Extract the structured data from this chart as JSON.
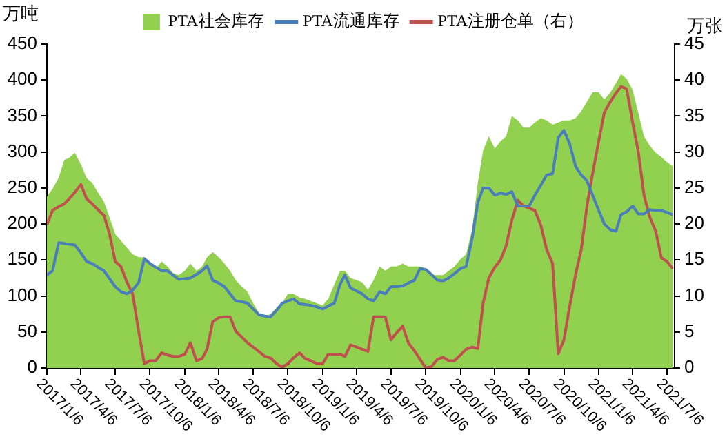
{
  "chart_data": {
    "type": "area",
    "ylabel": "万吨",
    "y2label": "万张",
    "legend": "top",
    "marker": "none",
    "x": [
      "2017-01-06",
      "2017-01-21",
      "2017-02-06",
      "2017-02-21",
      "2017-03-06",
      "2017-03-21",
      "2017-04-06",
      "2017-04-21",
      "2017-05-06",
      "2017-05-21",
      "2017-06-06",
      "2017-06-21",
      "2017-07-06",
      "2017-07-21",
      "2017-08-06",
      "2017-08-21",
      "2017-09-06",
      "2017-09-21",
      "2017-10-06",
      "2017-10-21",
      "2017-11-06",
      "2017-11-21",
      "2017-12-06",
      "2017-12-21",
      "2018-01-06",
      "2018-01-21",
      "2018-02-06",
      "2018-02-21",
      "2018-03-06",
      "2018-03-21",
      "2018-04-06",
      "2018-04-21",
      "2018-05-06",
      "2018-05-21",
      "2018-06-06",
      "2018-06-21",
      "2018-07-06",
      "2018-07-21",
      "2018-08-06",
      "2018-08-21",
      "2018-09-06",
      "2018-09-21",
      "2018-10-06",
      "2018-10-21",
      "2018-11-06",
      "2018-11-21",
      "2018-12-06",
      "2018-12-21",
      "2019-01-06",
      "2019-01-21",
      "2019-02-06",
      "2019-02-21",
      "2019-03-06",
      "2019-03-21",
      "2019-04-06",
      "2019-04-21",
      "2019-05-06",
      "2019-05-21",
      "2019-06-06",
      "2019-06-21",
      "2019-07-06",
      "2019-07-21",
      "2019-08-06",
      "2019-08-21",
      "2019-09-06",
      "2019-09-21",
      "2019-10-06",
      "2019-10-21",
      "2019-11-06",
      "2019-11-21",
      "2019-12-06",
      "2019-12-21",
      "2020-01-06",
      "2020-01-21",
      "2020-02-06",
      "2020-02-21",
      "2020-03-06",
      "2020-03-21",
      "2020-04-06",
      "2020-04-21",
      "2020-05-06",
      "2020-05-21",
      "2020-06-06",
      "2020-06-21",
      "2020-07-06",
      "2020-07-21",
      "2020-08-06",
      "2020-08-21",
      "2020-09-06",
      "2020-09-21",
      "2020-10-06",
      "2020-10-21",
      "2020-11-06",
      "2020-11-21",
      "2020-12-06",
      "2020-12-21",
      "2021-01-06",
      "2021-01-21",
      "2021-02-06",
      "2021-02-21",
      "2021-03-06",
      "2021-03-21",
      "2021-04-06",
      "2021-04-21",
      "2021-05-06",
      "2021-05-21",
      "2021-06-06",
      "2021-06-21",
      "2021-07-06",
      "2021-07-21"
    ],
    "xlim": [
      "2017-01-06",
      "2021-07-26"
    ],
    "xticks": [
      {
        "value": "2017-01-06",
        "label": "2017/1/6"
      },
      {
        "value": "2017-04-06",
        "label": "2017/4/6"
      },
      {
        "value": "2017-07-06",
        "label": "2017/7/6"
      },
      {
        "value": "2017-10-06",
        "label": "2017/10/6"
      },
      {
        "value": "2018-01-06",
        "label": "2018/1/6"
      },
      {
        "value": "2018-04-06",
        "label": "2018/4/6"
      },
      {
        "value": "2018-07-06",
        "label": "2018/7/6"
      },
      {
        "value": "2018-10-06",
        "label": "2018/10/6"
      },
      {
        "value": "2019-01-06",
        "label": "2019/1/6"
      },
      {
        "value": "2019-04-06",
        "label": "2019/4/6"
      },
      {
        "value": "2019-07-06",
        "label": "2019/7/6"
      },
      {
        "value": "2019-10-06",
        "label": "2019/10/6"
      },
      {
        "value": "2020-01-06",
        "label": "2020/1/6"
      },
      {
        "value": "2020-04-06",
        "label": "2020/4/6"
      },
      {
        "value": "2020-07-06",
        "label": "2020/7/6"
      },
      {
        "value": "2020-10-06",
        "label": "2020/10/6"
      },
      {
        "value": "2021-01-06",
        "label": "2021/1/6"
      },
      {
        "value": "2021-04-06",
        "label": "2021/4/6"
      },
      {
        "value": "2021-07-06",
        "label": "2021/7/6"
      }
    ],
    "ylim": [
      0,
      450
    ],
    "yticks": [
      0,
      50,
      100,
      150,
      200,
      250,
      300,
      350,
      400,
      450
    ],
    "y2lim": [
      0,
      45
    ],
    "y2ticks": [
      0,
      5,
      10,
      15,
      20,
      25,
      30,
      35,
      40,
      45
    ],
    "grid": false,
    "series": [
      {
        "name": "PTA社会库存",
        "color": "#92d050",
        "values": [
          238,
          249,
          264,
          289,
          292,
          299,
          283,
          264,
          257,
          244,
          231,
          209,
          186,
          177,
          167,
          158,
          154,
          154,
          145,
          138,
          148,
          141,
          132,
          129,
          135,
          145,
          135,
          141,
          154,
          161,
          154,
          145,
          135,
          122,
          113,
          106,
          90,
          77,
          71,
          75,
          84,
          90,
          103,
          103,
          98,
          96,
          93,
          90,
          87,
          96,
          116,
          135,
          135,
          125,
          122,
          119,
          109,
          122,
          141,
          135,
          141,
          141,
          145,
          141,
          141,
          141,
          138,
          129,
          129,
          129,
          135,
          141,
          151,
          158,
          193,
          257,
          302,
          322,
          305,
          315,
          322,
          350,
          344,
          334,
          334,
          341,
          347,
          344,
          338,
          341,
          344,
          344,
          347,
          357,
          370,
          383,
          383,
          373,
          383,
          396,
          408,
          402,
          386,
          354,
          322,
          309,
          299,
          293,
          286,
          280
        ]
      },
      {
        "name": "PTA流通库存",
        "type": "line",
        "color": "#4a7ebb",
        "values": [
          129,
          135,
          174,
          173,
          172,
          171,
          160,
          148,
          145,
          140,
          135,
          124,
          113,
          106,
          103,
          108,
          119,
          152,
          145,
          140,
          135,
          135,
          129,
          123,
          124,
          125,
          130,
          135,
          142,
          122,
          118,
          113,
          103,
          93,
          92,
          90,
          82,
          74,
          72,
          71,
          80,
          90,
          93,
          96,
          89,
          88,
          87,
          85,
          82,
          86,
          90,
          116,
          129,
          111,
          107,
          103,
          96,
          93,
          106,
          103,
          113,
          113,
          114,
          118,
          122,
          138,
          137,
          130,
          122,
          121,
          125,
          131,
          138,
          141,
          180,
          230,
          250,
          250,
          240,
          243,
          241,
          245,
          225,
          225,
          225,
          240,
          254,
          268,
          270,
          320,
          330,
          312,
          280,
          268,
          260,
          240,
          219,
          200,
          192,
          190,
          213,
          217,
          225,
          214,
          214,
          220,
          219,
          219,
          216,
          213
        ]
      },
      {
        "name": "PTA注册仓单（右）",
        "type": "line",
        "axis": "y2",
        "color": "#c0504d",
        "values": [
          19.9,
          21.9,
          22.4,
          22.8,
          23.5,
          24.4,
          25.5,
          23.5,
          22.8,
          22,
          21.2,
          18.6,
          14.8,
          14.1,
          11.9,
          10.3,
          5.1,
          0.6,
          1.0,
          1.0,
          2.1,
          1.8,
          1.6,
          1.6,
          1.9,
          3.5,
          1.0,
          1.3,
          2.6,
          6.4,
          7.0,
          7.1,
          7.1,
          5.1,
          4.3,
          3.5,
          2.9,
          2.3,
          1.6,
          1.4,
          0.6,
          0.1,
          0.6,
          1.4,
          2.1,
          1.3,
          1.0,
          0.6,
          0.6,
          1.9,
          1.9,
          1.9,
          1.6,
          3.2,
          2.9,
          2.6,
          2.3,
          7.1,
          7.1,
          7.1,
          3.9,
          4.9,
          5.8,
          3.5,
          2.4,
          1.2,
          0,
          0.2,
          1.2,
          1.5,
          1.0,
          1.0,
          1.8,
          2.6,
          2.9,
          2.7,
          9,
          12.5,
          14,
          15,
          17,
          20.5,
          23.3,
          22.5,
          22.2,
          21.9,
          19.8,
          16.5,
          14.5,
          2,
          3.9,
          8.5,
          13,
          16.5,
          22.5,
          27,
          31.5,
          35.5,
          37,
          38.2,
          39.1,
          38.8,
          34.1,
          30,
          24,
          21,
          19,
          15.3,
          14.8,
          13.8
        ]
      }
    ]
  }
}
